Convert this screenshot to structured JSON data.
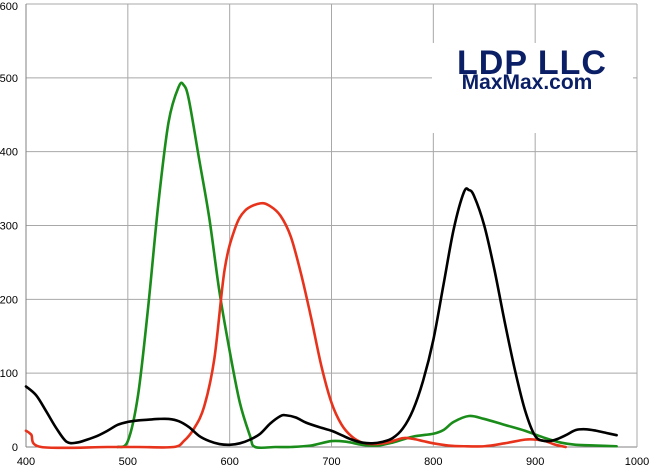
{
  "watermark": {
    "line1": "LDP LLC",
    "line2": "MaxMax.com",
    "color": "#0b1f66"
  },
  "chart_data": {
    "type": "line",
    "title": "",
    "xlabel": "",
    "ylabel": "",
    "xlim": [
      400,
      1000
    ],
    "ylim": [
      0,
      600
    ],
    "grid": true,
    "x_ticks": [
      400,
      500,
      600,
      700,
      800,
      900,
      1000
    ],
    "y_ticks": [
      0,
      100,
      200,
      300,
      400,
      500,
      600
    ],
    "series": [
      {
        "color": "#1a8c1a",
        "points": [
          [
            490,
            0
          ],
          [
            500,
            8
          ],
          [
            510,
            70
          ],
          [
            520,
            190
          ],
          [
            530,
            330
          ],
          [
            540,
            440
          ],
          [
            550,
            488
          ],
          [
            555,
            490
          ],
          [
            560,
            470
          ],
          [
            570,
            390
          ],
          [
            580,
            310
          ],
          [
            590,
            210
          ],
          [
            600,
            130
          ],
          [
            610,
            60
          ],
          [
            620,
            15
          ],
          [
            625,
            0
          ],
          [
            645,
            0
          ],
          [
            660,
            0
          ],
          [
            680,
            2
          ],
          [
            700,
            8
          ],
          [
            715,
            7
          ],
          [
            730,
            3
          ],
          [
            745,
            2
          ],
          [
            760,
            6
          ],
          [
            780,
            14
          ],
          [
            800,
            18
          ],
          [
            810,
            23
          ],
          [
            820,
            34
          ],
          [
            835,
            42
          ],
          [
            850,
            38
          ],
          [
            870,
            30
          ],
          [
            890,
            22
          ],
          [
            910,
            12
          ],
          [
            925,
            6
          ],
          [
            940,
            3
          ],
          [
            960,
            2
          ],
          [
            980,
            1
          ]
        ]
      },
      {
        "color": "#e8331c",
        "points": [
          [
            400,
            22
          ],
          [
            405,
            17
          ],
          [
            415,
            0
          ],
          [
            480,
            0
          ],
          [
            510,
            0
          ],
          [
            545,
            0
          ],
          [
            555,
            8
          ],
          [
            565,
            25
          ],
          [
            575,
            55
          ],
          [
            585,
            120
          ],
          [
            595,
            240
          ],
          [
            605,
            295
          ],
          [
            615,
            320
          ],
          [
            630,
            330
          ],
          [
            640,
            326
          ],
          [
            650,
            313
          ],
          [
            660,
            285
          ],
          [
            670,
            235
          ],
          [
            680,
            175
          ],
          [
            690,
            110
          ],
          [
            700,
            60
          ],
          [
            710,
            30
          ],
          [
            720,
            14
          ],
          [
            730,
            6
          ],
          [
            740,
            4
          ],
          [
            755,
            6
          ],
          [
            770,
            12
          ],
          [
            780,
            11
          ],
          [
            790,
            8
          ],
          [
            800,
            5
          ],
          [
            815,
            2
          ],
          [
            830,
            1
          ],
          [
            850,
            1
          ],
          [
            870,
            5
          ],
          [
            890,
            10
          ],
          [
            900,
            10
          ],
          [
            910,
            8
          ],
          [
            920,
            3
          ],
          [
            930,
            0
          ]
        ]
      },
      {
        "color": "#000000",
        "points": [
          [
            400,
            82
          ],
          [
            410,
            70
          ],
          [
            420,
            48
          ],
          [
            430,
            25
          ],
          [
            440,
            7
          ],
          [
            450,
            6
          ],
          [
            460,
            10
          ],
          [
            470,
            15
          ],
          [
            480,
            22
          ],
          [
            490,
            30
          ],
          [
            500,
            34
          ],
          [
            510,
            36
          ],
          [
            520,
            37
          ],
          [
            530,
            38
          ],
          [
            540,
            38
          ],
          [
            550,
            35
          ],
          [
            560,
            27
          ],
          [
            570,
            15
          ],
          [
            580,
            8
          ],
          [
            590,
            4
          ],
          [
            600,
            3
          ],
          [
            610,
            5
          ],
          [
            620,
            10
          ],
          [
            630,
            18
          ],
          [
            640,
            32
          ],
          [
            650,
            42
          ],
          [
            655,
            43
          ],
          [
            665,
            40
          ],
          [
            675,
            33
          ],
          [
            690,
            26
          ],
          [
            700,
            22
          ],
          [
            710,
            16
          ],
          [
            720,
            10
          ],
          [
            730,
            6
          ],
          [
            740,
            5
          ],
          [
            750,
            7
          ],
          [
            760,
            12
          ],
          [
            770,
            25
          ],
          [
            780,
            50
          ],
          [
            790,
            90
          ],
          [
            800,
            145
          ],
          [
            810,
            220
          ],
          [
            820,
            295
          ],
          [
            830,
            345
          ],
          [
            835,
            348
          ],
          [
            840,
            340
          ],
          [
            850,
            300
          ],
          [
            860,
            240
          ],
          [
            870,
            170
          ],
          [
            880,
            105
          ],
          [
            890,
            50
          ],
          [
            900,
            15
          ],
          [
            910,
            8
          ],
          [
            920,
            10
          ],
          [
            930,
            16
          ],
          [
            940,
            23
          ],
          [
            950,
            24
          ],
          [
            960,
            22
          ],
          [
            970,
            19
          ],
          [
            980,
            16
          ]
        ]
      }
    ]
  }
}
